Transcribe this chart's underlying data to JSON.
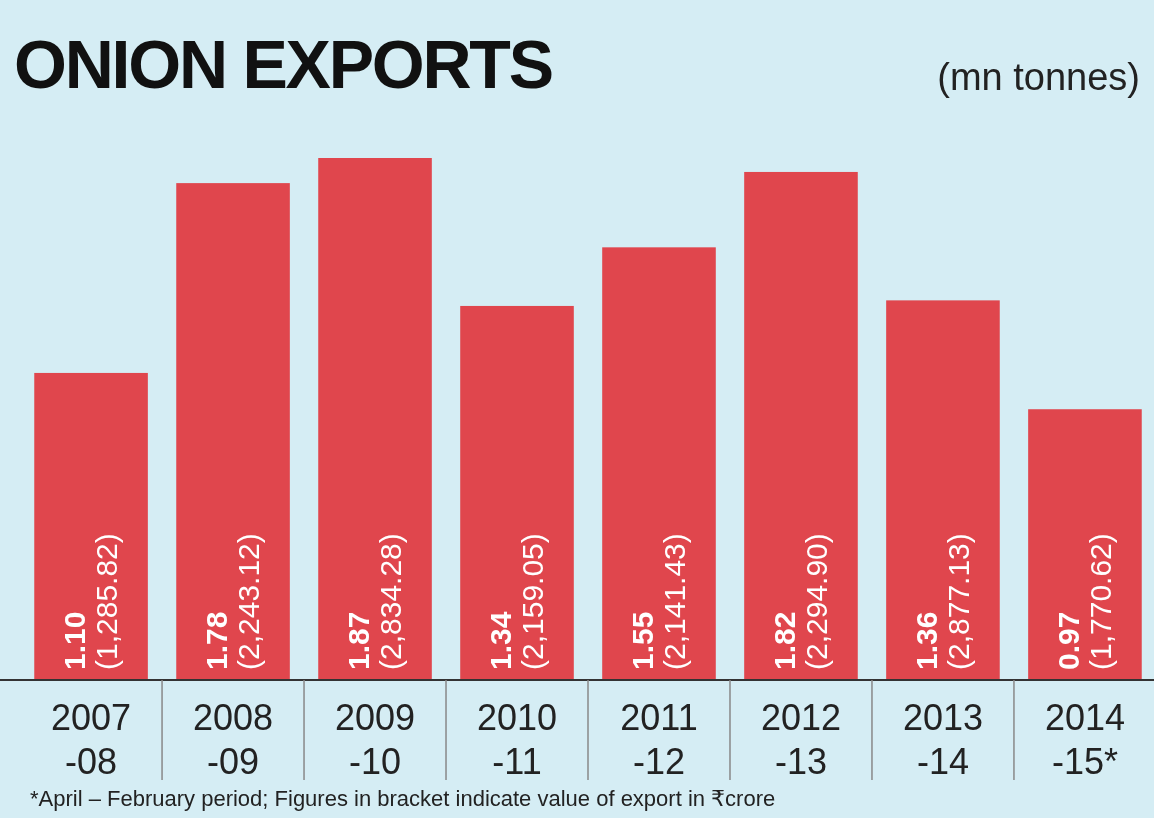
{
  "chart_data": {
    "type": "bar",
    "title": "ONION EXPORTS",
    "subtitle": "(mn tonnes)",
    "categories": [
      "2007-08",
      "2008-09",
      "2009-10",
      "2010-11",
      "2011-12",
      "2012-13",
      "2013-14",
      "2014-15*"
    ],
    "values": [
      1.1,
      1.78,
      1.87,
      1.34,
      1.55,
      1.82,
      1.36,
      0.97
    ],
    "value_labels": [
      "1.10 (1,285.82)",
      "1.78 (2,243.12)",
      "1.87 (2,834.28)",
      "1.34 (2,159.05)",
      "1.55 (2,141.43)",
      "1.82 (2,294.90)",
      "1.36 (2,877.13)",
      "0.97 (1,770.62)"
    ],
    "color": "#e0464d",
    "annotations": [
      "*April – February period; Figures in bracket indicate value of export in ₹crore"
    ]
  }
}
